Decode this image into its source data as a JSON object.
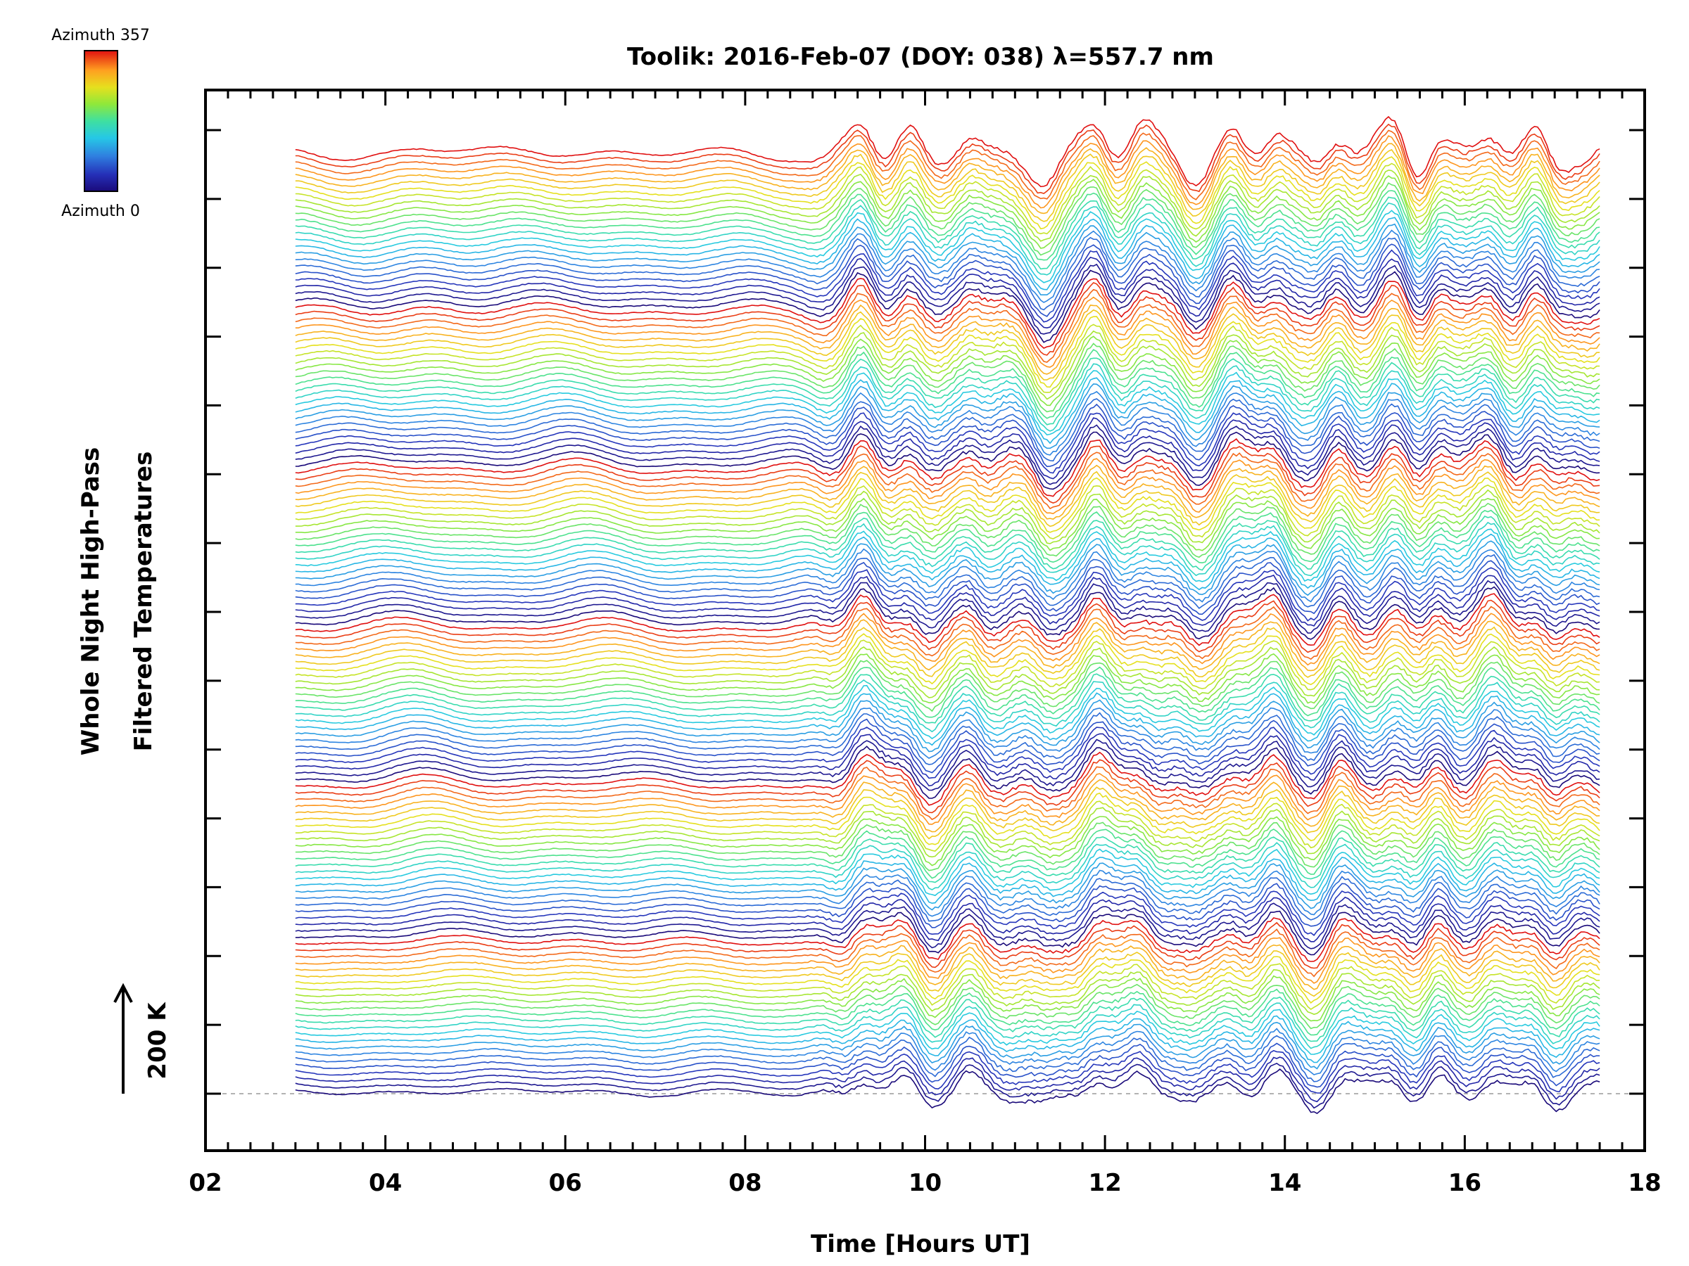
{
  "chart_data": {
    "type": "line",
    "title": "Toolik: 2016-Feb-07 (DOY: 038) λ=557.7 nm",
    "xlabel": "Time [Hours UT]",
    "ylabel_lines": [
      "Whole Night High-Pass",
      "Filtered Temperatures"
    ],
    "xlim": [
      2,
      18
    ],
    "x_ticks": [
      "02",
      "04",
      "06",
      "08",
      "10",
      "12",
      "14",
      "16",
      "18"
    ],
    "x_tick_values": [
      2,
      4,
      6,
      8,
      10,
      12,
      14,
      16,
      18
    ],
    "x_range_data": [
      3.0,
      17.5
    ],
    "y_major_ticks": 15,
    "scale_bar_label": "200 K",
    "n_traces": 144,
    "n_azimuth_groups": 6,
    "colorbar": {
      "top_label": "Azimuth 357",
      "bottom_label": "Azimuth 0",
      "colormap": "rainbow",
      "colors": [
        "#1a0a7a",
        "#2530b8",
        "#2f7fe0",
        "#26c8e6",
        "#3fe0a0",
        "#8fe83a",
        "#e6e01e",
        "#ffa020",
        "#ff3a10",
        "#e01010"
      ]
    },
    "features": {
      "peaks_hours": [
        9.3,
        9.8,
        10.5,
        11.9,
        12.4,
        13.4,
        13.9,
        14.6,
        15.2,
        15.7,
        16.3,
        16.8
      ],
      "troughs_hours": [
        10.1,
        11.35,
        13.0,
        14.35,
        15.5,
        17.0
      ]
    },
    "baseline_style": "dashed gray"
  }
}
